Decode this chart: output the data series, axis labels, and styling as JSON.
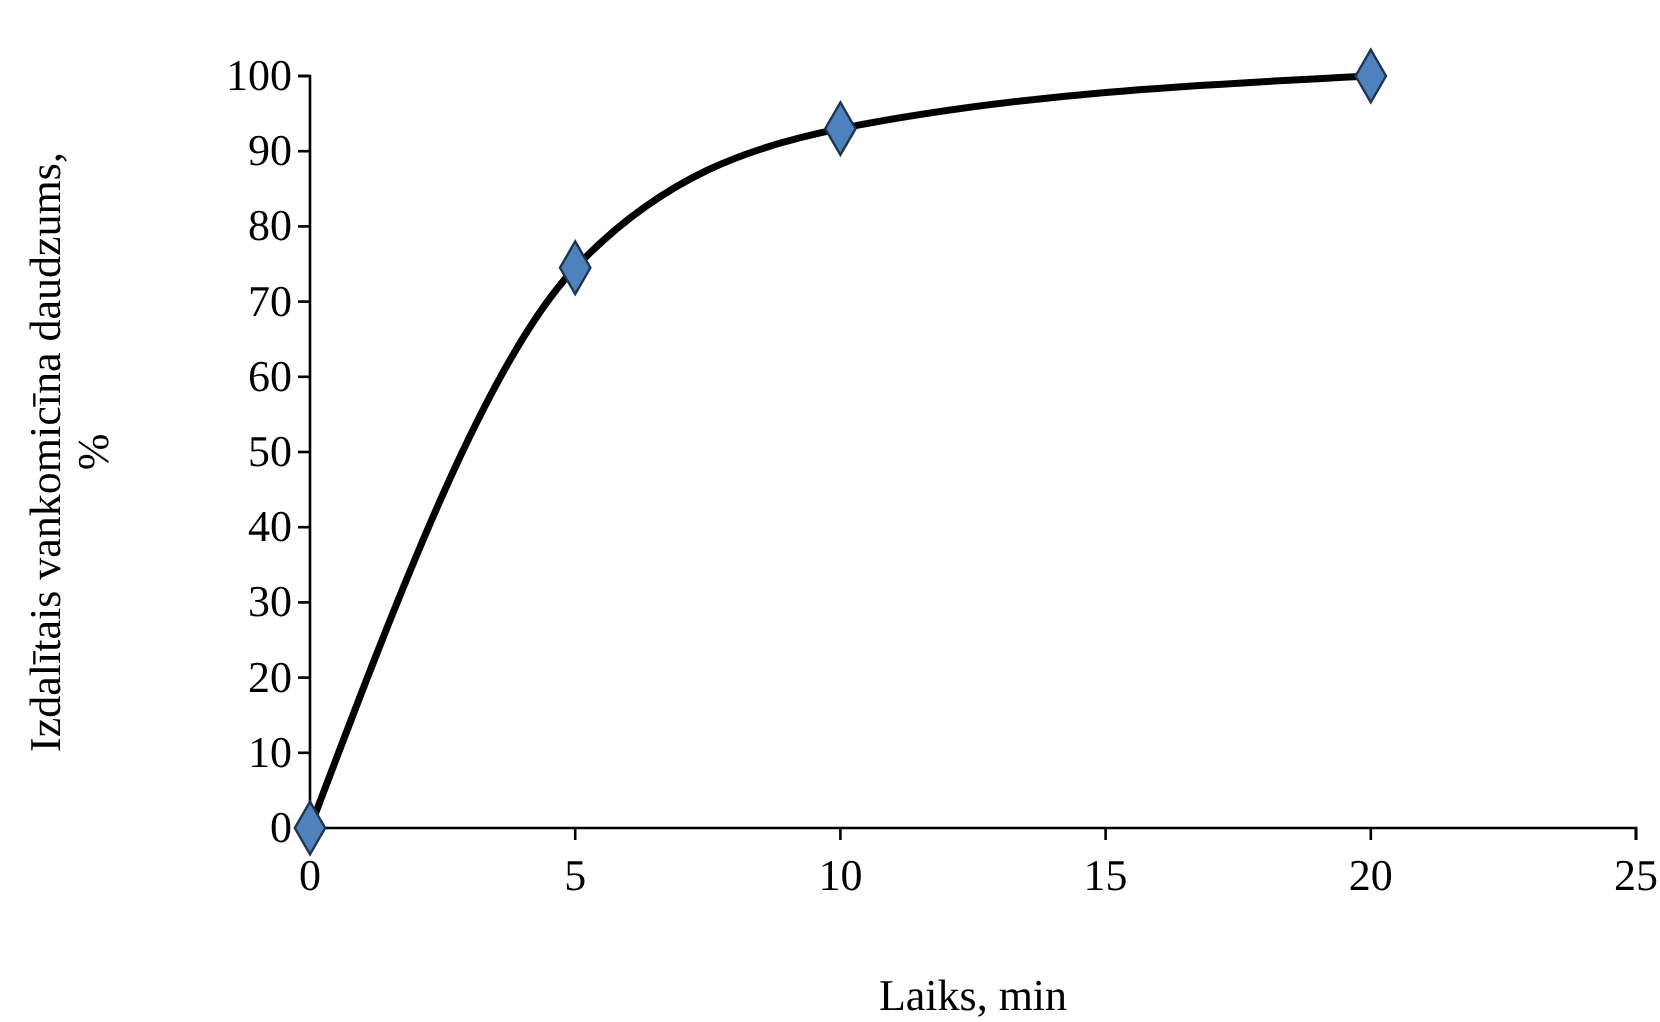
{
  "chart_data": {
    "type": "line",
    "xlabel": "Laiks, min",
    "ylabel": "Izdalītais vankomicīna daudzums, %",
    "x": [
      0,
      5,
      10,
      20
    ],
    "series": [
      {
        "color": "#000000",
        "values": [
          0,
          74.5,
          93,
          100
        ]
      }
    ],
    "marker": "diamond",
    "line_style": "solid",
    "xlim": [
      0,
      25
    ],
    "xticks": [
      0,
      5,
      10,
      15,
      20,
      25
    ],
    "ylim": [
      0,
      100
    ],
    "yticks": [
      0,
      10,
      20,
      30,
      40,
      50,
      60,
      70,
      80,
      90,
      100
    ],
    "grid": false
  }
}
